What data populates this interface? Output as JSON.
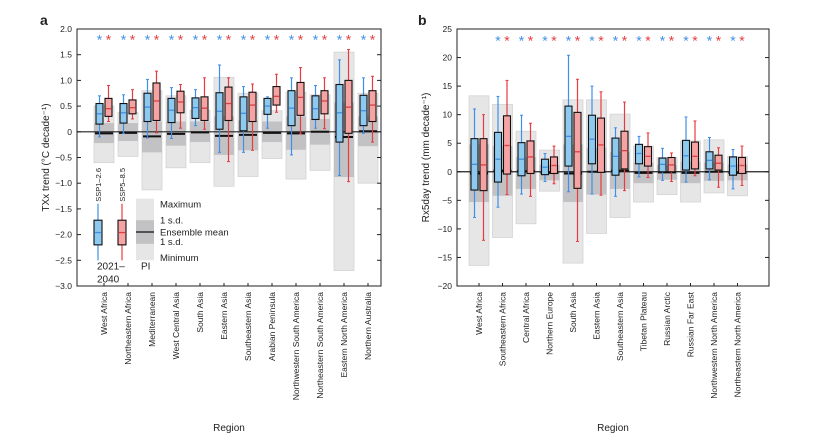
{
  "chart_data": [
    {
      "panel_label": "a",
      "type": "box",
      "ylabel": "TXx trend (°C decade⁻¹)",
      "xlabel": "Region",
      "ylim": [
        -3.0,
        2.0
      ],
      "yticks": [
        2.0,
        1.5,
        1.0,
        0.5,
        0,
        -0.5,
        -1.0,
        -1.5,
        -2.0,
        -2.5,
        -3.0
      ],
      "ytick_labels": [
        "2.0",
        "1.5",
        "1.0",
        "0.5",
        "0",
        "−0.5",
        "−1.0",
        "−1.5",
        "−2.0",
        "−2.5",
        "−3.0"
      ],
      "significance_marker": "*",
      "significance_y": 1.8,
      "box_format": "[whisker_low, q1, median, q3, whisker_high]",
      "pi_format": "[min, mean_minus_sd, mean, mean_plus_sd, max]",
      "regions": [
        {
          "name": "West Africa",
          "ssp126": [
            -0.1,
            0.15,
            0.35,
            0.55,
            0.7
          ],
          "ssp585": [
            0.2,
            0.3,
            0.45,
            0.65,
            0.9
          ],
          "pi": [
            -0.6,
            -0.22,
            -0.03,
            0.17,
            0.5
          ],
          "sig": [
            true,
            true
          ]
        },
        {
          "name": "Northeastern Africa",
          "ssp126": [
            -0.03,
            0.17,
            0.37,
            0.55,
            0.72
          ],
          "ssp585": [
            0.25,
            0.35,
            0.47,
            0.62,
            0.82
          ],
          "pi": [
            -0.48,
            -0.18,
            -0.02,
            0.17,
            0.38
          ],
          "sig": [
            true,
            true
          ]
        },
        {
          "name": "Mediterranean",
          "ssp126": [
            -0.12,
            0.2,
            0.48,
            0.75,
            1.02
          ],
          "ssp585": [
            -0.02,
            0.22,
            0.6,
            0.95,
            1.18
          ],
          "pi": [
            -1.13,
            -0.4,
            -0.09,
            0.2,
            0.8
          ],
          "sig": [
            true,
            true
          ]
        },
        {
          "name": "West Central Asia",
          "ssp126": [
            -0.13,
            0.18,
            0.42,
            0.65,
            0.86
          ],
          "ssp585": [
            0.07,
            0.37,
            0.58,
            0.79,
            0.92
          ],
          "pi": [
            -0.7,
            -0.27,
            -0.04,
            0.2,
            0.7
          ],
          "sig": [
            true,
            true
          ]
        },
        {
          "name": "South Asia",
          "ssp126": [
            0.12,
            0.26,
            0.47,
            0.66,
            0.82
          ],
          "ssp585": [
            0.05,
            0.22,
            0.46,
            0.68,
            1.05
          ],
          "pi": [
            -0.6,
            -0.2,
            -0.01,
            0.2,
            0.42
          ],
          "sig": [
            true,
            true
          ]
        },
        {
          "name": "Eastern Asia",
          "ssp126": [
            -0.4,
            0.05,
            0.4,
            0.76,
            1.3
          ],
          "ssp585": [
            -0.58,
            0.22,
            0.55,
            0.87,
            1.05
          ],
          "pi": [
            -1.06,
            -0.45,
            -0.08,
            0.3,
            1.06
          ],
          "sig": [
            true,
            true
          ]
        },
        {
          "name": "Southeastern Asia",
          "ssp126": [
            -0.4,
            0.02,
            0.36,
            0.68,
            0.88
          ],
          "ssp585": [
            -0.36,
            0.2,
            0.52,
            0.77,
            0.93
          ],
          "pi": [
            -0.87,
            -0.36,
            -0.06,
            0.22,
            0.75
          ],
          "sig": [
            true,
            true
          ]
        },
        {
          "name": "Arabian Peninsula",
          "ssp126": [
            0.07,
            0.34,
            0.5,
            0.65,
            0.68
          ],
          "ssp585": [
            0.38,
            0.52,
            0.69,
            0.88,
            1.12
          ],
          "pi": [
            -0.52,
            -0.2,
            -0.02,
            0.2,
            0.41
          ],
          "sig": [
            true,
            true
          ]
        },
        {
          "name": "Northwestern South America",
          "ssp126": [
            -0.45,
            0.12,
            0.46,
            0.8,
            1.05
          ],
          "ssp585": [
            -0.04,
            0.32,
            0.67,
            0.96,
            1.25
          ],
          "pi": [
            -0.92,
            -0.35,
            -0.03,
            0.3,
            0.77
          ],
          "sig": [
            true,
            true
          ]
        },
        {
          "name": "Northeastern South America",
          "ssp126": [
            0.07,
            0.24,
            0.45,
            0.7,
            0.9
          ],
          "ssp585": [
            0.06,
            0.35,
            0.6,
            0.8,
            1.05
          ],
          "pi": [
            -0.75,
            -0.25,
            0.0,
            0.25,
            0.72
          ],
          "sig": [
            true,
            true
          ]
        },
        {
          "name": "Eastern North America",
          "ssp126": [
            -0.85,
            -0.2,
            0.37,
            0.92,
            1.4
          ],
          "ssp585": [
            -0.97,
            -0.03,
            0.48,
            1.0,
            1.6
          ],
          "pi": [
            -2.7,
            -0.88,
            -0.1,
            0.57,
            1.55
          ],
          "sig": [
            true,
            true
          ]
        },
        {
          "name": "Northern Australia",
          "ssp126": [
            -0.03,
            0.12,
            0.41,
            0.71,
            1.05
          ],
          "ssp585": [
            -0.2,
            0.2,
            0.52,
            0.8,
            1.08
          ],
          "pi": [
            -1.0,
            -0.28,
            0.01,
            0.3,
            0.75
          ],
          "sig": [
            true,
            true
          ]
        }
      ],
      "legend": {
        "ssp126": "SSP1–2.6",
        "ssp585": "SSP5–8.5",
        "period_line1": "2021–",
        "period_line2": "2040",
        "pi": "PI",
        "maximum": "Maximum",
        "sd_upper": "1 s.d.",
        "ensemble_mean": "Ensemble mean",
        "sd_lower": "1 s.d.",
        "minimum": "Minimum"
      }
    },
    {
      "panel_label": "b",
      "type": "box",
      "ylabel": "Rx5day trend (mm decade⁻¹)",
      "xlabel": "Region",
      "ylim": [
        -20,
        25
      ],
      "yticks": [
        25,
        20,
        15,
        10,
        5,
        0,
        -5,
        -10,
        -15,
        -20
      ],
      "ytick_labels": [
        "25",
        "20",
        "15",
        "10",
        "5",
        "0",
        "−5",
        "−10",
        "−15",
        "−20"
      ],
      "significance_marker": "*",
      "significance_y": 23,
      "box_format": "[whisker_low, q1, median, q3, whisker_high]",
      "pi_format": "[min, mean_minus_sd, mean, mean_plus_sd, max]",
      "regions": [
        {
          "name": "West Africa",
          "ssp126": [
            -8,
            -3.2,
            1.3,
            5.8,
            11
          ],
          "ssp585": [
            -12,
            -3.3,
            1.2,
            5.8,
            10
          ],
          "pi": [
            -16.4,
            -5.3,
            -0.3,
            4.8,
            13.3
          ],
          "sig": [
            false,
            false
          ]
        },
        {
          "name": "Southeastern Africa",
          "ssp126": [
            -6.2,
            -1.8,
            2.2,
            6.9,
            13.2
          ],
          "ssp585": [
            -4,
            -0.4,
            4.6,
            9.8,
            16
          ],
          "pi": [
            -11.5,
            -4.2,
            0.2,
            4.5,
            11.8
          ],
          "sig": [
            true,
            true
          ]
        },
        {
          "name": "Central Africa",
          "ssp126": [
            -3.9,
            -0.7,
            2.2,
            5.1,
            9.9
          ],
          "ssp585": [
            -4.3,
            -0.3,
            2.6,
            5.4,
            8.5
          ],
          "pi": [
            -9.1,
            -3,
            0.1,
            2.6,
            7.1
          ],
          "sig": [
            true,
            true
          ]
        },
        {
          "name": "Northern Europe",
          "ssp126": [
            -1.7,
            -0.5,
            0.8,
            2.2,
            3.2
          ],
          "ssp585": [
            -2.1,
            -0.3,
            1.1,
            2.6,
            4.5
          ],
          "pi": [
            -3.4,
            -1.5,
            -0.2,
            1.2,
            3.8
          ],
          "sig": [
            true,
            true
          ]
        },
        {
          "name": "South Asia",
          "ssp126": [
            -3.5,
            1,
            6.2,
            11.5,
            20.4
          ],
          "ssp585": [
            -12.2,
            -2.9,
            3.5,
            10.4,
            16.2
          ],
          "pi": [
            -16,
            -5.3,
            -0.3,
            4.8,
            12.6
          ],
          "sig": [
            true,
            true
          ]
        },
        {
          "name": "Eastern Asia",
          "ssp126": [
            -3.9,
            1.4,
            5.7,
            9.9,
            15
          ],
          "ssp585": [
            -4.1,
            -0.1,
            4.7,
            9.4,
            14
          ],
          "pi": [
            -10.8,
            -4,
            0,
            4.2,
            12.6
          ],
          "sig": [
            true,
            true
          ]
        },
        {
          "name": "Southeastern Asia",
          "ssp126": [
            -4.3,
            -0.6,
            2.7,
            5.9,
            7.7
          ],
          "ssp585": [
            -3.3,
            0.5,
            3.7,
            7.1,
            12.2
          ],
          "pi": [
            -8,
            -3,
            0.2,
            3.5,
            10.1
          ],
          "sig": [
            true,
            true
          ]
        },
        {
          "name": "Tibetan Plateau",
          "ssp126": [
            -0.9,
            1.4,
            3.2,
            4.8,
            6.2
          ],
          "ssp585": [
            -1,
            1,
            2.7,
            4.4,
            6.8
          ],
          "pi": [
            -5.3,
            -2,
            -0.2,
            1.6,
            4.5
          ],
          "sig": [
            true,
            true
          ]
        },
        {
          "name": "Russian Arctic",
          "ssp126": [
            -1.5,
            0,
            1.3,
            2.4,
            4.1
          ],
          "ssp585": [
            -1.7,
            0,
            1.2,
            2.5,
            3.3
          ],
          "pi": [
            -4,
            -1.4,
            -0.1,
            1.2,
            2.5
          ],
          "sig": [
            true,
            true
          ]
        },
        {
          "name": "Russian Far East",
          "ssp126": [
            -1.8,
            0.3,
            2.8,
            5.5,
            9.6
          ],
          "ssp585": [
            -0.7,
            0.5,
            2.7,
            5.2,
            8.9
          ],
          "pi": [
            -5.3,
            -2,
            -0.2,
            1.8,
            5.4
          ],
          "sig": [
            true,
            true
          ]
        },
        {
          "name": "Northwestern North America",
          "ssp126": [
            -1.4,
            0.5,
            2,
            3.5,
            6
          ],
          "ssp585": [
            -2.7,
            0.3,
            1.5,
            2.9,
            4.2
          ],
          "pi": [
            -3.7,
            -1.6,
            0,
            1.6,
            5.6
          ],
          "sig": [
            true,
            true
          ]
        },
        {
          "name": "Northeastern North America",
          "ssp126": [
            -3,
            -0.6,
            1,
            2.6,
            3.9
          ],
          "ssp585": [
            -2.4,
            -0.3,
            1.1,
            2.5,
            4.5
          ],
          "pi": [
            -4.2,
            -1.5,
            -0.2,
            1.3,
            2.7
          ],
          "sig": [
            true,
            true
          ]
        }
      ]
    }
  ],
  "colors": {
    "ssp126_fill": "#8ec9f0",
    "ssp126_line": "#3d8fe8",
    "ssp585_fill": "#f5a3a3",
    "ssp585_line": "#e83a3f",
    "pi_range": "#e6e6e7",
    "pi_sd": "#c2c2c4",
    "axis": "#222222"
  }
}
